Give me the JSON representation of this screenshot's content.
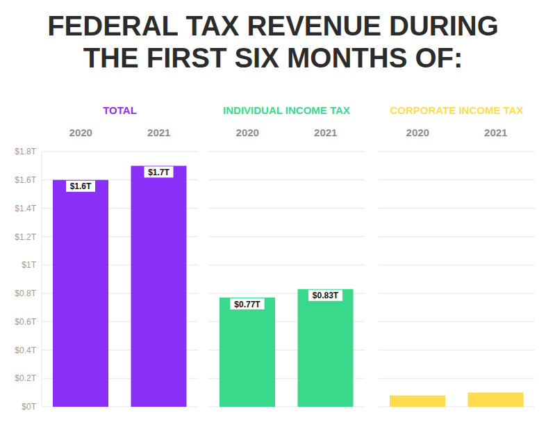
{
  "title": "FEDERAL TAX REVENUE DURING THE FIRST SIX MONTHS OF:",
  "chart_data": [
    {
      "type": "bar",
      "title": "TOTAL",
      "categories": [
        "2020",
        "2021"
      ],
      "values": [
        1.6,
        1.7
      ],
      "value_labels": [
        "$1.6T",
        "$1.7T"
      ],
      "color": "#8a2ff7",
      "ylim": [
        0,
        1.8
      ],
      "yticks": [
        {
          "value": 0,
          "label": "$0T"
        },
        {
          "value": 0.2,
          "label": "$0.2T"
        },
        {
          "value": 0.4,
          "label": "$0.4T"
        },
        {
          "value": 0.6,
          "label": "$0.6T"
        },
        {
          "value": 0.8,
          "label": "$0.8T"
        },
        {
          "value": 1,
          "label": "$1T"
        },
        {
          "value": 1.2,
          "label": "$1.2T"
        },
        {
          "value": 1.4,
          "label": "$1.4T"
        },
        {
          "value": 1.6,
          "label": "$1.6T"
        },
        {
          "value": 1.8,
          "label": "$1.8T"
        }
      ],
      "grid": true,
      "data_labels": true
    },
    {
      "type": "bar",
      "title": "INDIVIDUAL INCOME TAX",
      "categories": [
        "2020",
        "2021"
      ],
      "values": [
        0.77,
        0.83
      ],
      "value_labels": [
        "$0.77T",
        "$0.83T"
      ],
      "color": "#38d98b",
      "ylim": [
        0,
        1.8
      ],
      "yticks": [
        {
          "value": 0,
          "label": "$0T"
        },
        {
          "value": 0.2,
          "label": "$0.2T"
        },
        {
          "value": 0.4,
          "label": "$0.4T"
        },
        {
          "value": 0.6,
          "label": "$0.6T"
        },
        {
          "value": 0.8,
          "label": "$0.8T"
        },
        {
          "value": 1,
          "label": "$1T"
        },
        {
          "value": 1.2,
          "label": "$1.2T"
        },
        {
          "value": 1.4,
          "label": "$1.4T"
        },
        {
          "value": 1.6,
          "label": "$1.6T"
        },
        {
          "value": 1.8,
          "label": "$1.8T"
        }
      ],
      "grid": true,
      "data_labels": true,
      "tick_labels": "x"
    },
    {
      "type": "bar",
      "title": "CORPORATE INCOME TAX",
      "categories": [
        "2020",
        "2021"
      ],
      "values": [
        0.08,
        0.1
      ],
      "color": "#fddc4e",
      "ylim": [
        0,
        1.8
      ],
      "yticks": [
        {
          "value": 0,
          "label": "$0T"
        },
        {
          "value": 0.2,
          "label": "$0.2T"
        },
        {
          "value": 0.4,
          "label": "$0.4T"
        },
        {
          "value": 0.6,
          "label": "$0.6T"
        },
        {
          "value": 0.8,
          "label": "$0.8T"
        },
        {
          "value": 1,
          "label": "$1T"
        },
        {
          "value": 1.2,
          "label": "$1.2T"
        },
        {
          "value": 1.4,
          "label": "$1.4T"
        },
        {
          "value": 1.6,
          "label": "$1.6T"
        },
        {
          "value": 1.8,
          "label": "$1.8T"
        }
      ],
      "grid": true,
      "data_labels": false,
      "tick_labels": "x"
    }
  ]
}
